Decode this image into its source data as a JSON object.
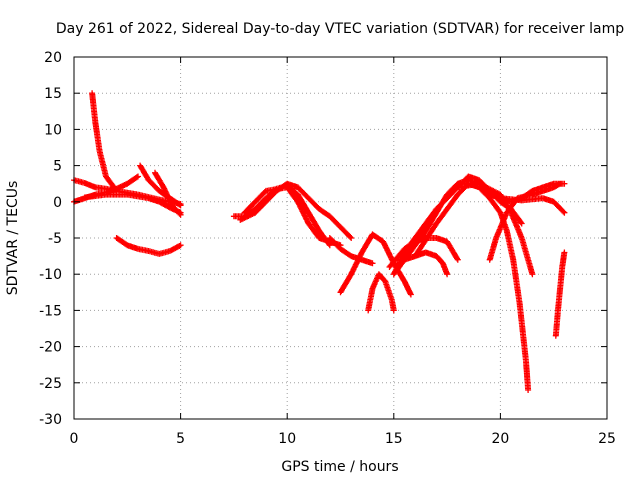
{
  "chart_data": {
    "type": "scatter",
    "title": "Day 261 of 2022, Sidereal Day-to-day VTEC variation (SDTVAR) for receiver lamp",
    "xlabel": "GPS time / hours",
    "ylabel": "SDTVAR / TECUs",
    "xlim": [
      0,
      25
    ],
    "ylim": [
      -30,
      20
    ],
    "xticks": [
      0,
      5,
      10,
      15,
      20,
      25
    ],
    "yticks": [
      20,
      15,
      10,
      5,
      0,
      -5,
      -10,
      -15,
      -20,
      -25,
      -30
    ],
    "grid": true,
    "marker": "plus",
    "color": "#ff0000",
    "series": [
      {
        "name": "tracks",
        "tracks": [
          [
            [
              0.85,
              15
            ],
            [
              1.0,
              11
            ],
            [
              1.2,
              7
            ],
            [
              1.5,
              3.5
            ],
            [
              2.0,
              1.5
            ],
            [
              2.5,
              1.2
            ],
            [
              3.0,
              1.0
            ]
          ],
          [
            [
              0.0,
              3.0
            ],
            [
              0.5,
              2.6
            ],
            [
              1.0,
              2.0
            ],
            [
              1.5,
              1.8
            ],
            [
              2.0,
              1.5
            ],
            [
              3.0,
              1.0
            ],
            [
              4.0,
              0.3
            ],
            [
              4.5,
              0.0
            ],
            [
              5.0,
              -0.3
            ]
          ],
          [
            [
              0.0,
              0.0
            ],
            [
              0.5,
              0.5
            ],
            [
              1.0,
              1.0
            ],
            [
              1.5,
              1.3
            ],
            [
              2.0,
              1.8
            ],
            [
              2.5,
              2.5
            ],
            [
              3.0,
              3.5
            ]
          ],
          [
            [
              0.5,
              0.6
            ],
            [
              1.5,
              1.0
            ],
            [
              2.5,
              1.0
            ],
            [
              3.5,
              0.5
            ],
            [
              4.0,
              0.0
            ],
            [
              4.5,
              -0.8
            ],
            [
              5.0,
              -1.5
            ]
          ],
          [
            [
              3.1,
              5.0
            ],
            [
              3.5,
              3.0
            ],
            [
              4.0,
              1.5
            ],
            [
              4.5,
              0.5
            ],
            [
              5.0,
              -0.5
            ]
          ],
          [
            [
              3.8,
              4.0
            ],
            [
              4.2,
              2.0
            ],
            [
              4.6,
              -0.5
            ],
            [
              5.0,
              -1.8
            ]
          ],
          [
            [
              2.0,
              -5.0
            ],
            [
              2.5,
              -6.0
            ],
            [
              3.0,
              -6.5
            ],
            [
              3.5,
              -6.8
            ],
            [
              4.0,
              -7.2
            ],
            [
              4.5,
              -6.8
            ],
            [
              5.0,
              -6.0
            ]
          ],
          [
            [
              7.5,
              -2.0
            ],
            [
              8.0,
              -2.0
            ],
            [
              8.5,
              -1.0
            ],
            [
              9.0,
              0.5
            ],
            [
              9.5,
              1.8
            ],
            [
              10.0,
              2.2
            ],
            [
              10.5,
              1.0
            ],
            [
              11.0,
              -1.5
            ],
            [
              11.5,
              -4.0
            ],
            [
              12.0,
              -6.0
            ]
          ],
          [
            [
              7.8,
              -2.5
            ],
            [
              8.5,
              -1.5
            ],
            [
              9.0,
              0.0
            ],
            [
              9.5,
              1.5
            ],
            [
              10.0,
              2.5
            ],
            [
              10.5,
              2.0
            ],
            [
              11.0,
              0.5
            ],
            [
              11.5,
              -1.0
            ],
            [
              12.0,
              -2.0
            ],
            [
              12.5,
              -3.5
            ],
            [
              13.0,
              -5.0
            ]
          ],
          [
            [
              8.0,
              -1.5
            ],
            [
              9.0,
              1.5
            ],
            [
              10.0,
              2.0
            ],
            [
              10.5,
              0.0
            ],
            [
              11.0,
              -3.0
            ],
            [
              11.5,
              -5.0
            ],
            [
              12.0,
              -5.5
            ],
            [
              12.5,
              -6.0
            ]
          ],
          [
            [
              12.5,
              -12.5
            ],
            [
              13.0,
              -10.0
            ],
            [
              13.5,
              -7.0
            ],
            [
              14.0,
              -4.5
            ],
            [
              14.5,
              -5.5
            ],
            [
              15.0,
              -8.5
            ],
            [
              15.3,
              -10.0
            ],
            [
              15.5,
              -11.0
            ],
            [
              15.8,
              -12.8
            ]
          ],
          [
            [
              13.8,
              -15.0
            ],
            [
              14.0,
              -12.0
            ],
            [
              14.3,
              -10.0
            ],
            [
              14.6,
              -11.0
            ],
            [
              14.9,
              -13.5
            ],
            [
              15.0,
              -15.0
            ]
          ],
          [
            [
              15.0,
              -10.0
            ],
            [
              15.5,
              -8.0
            ],
            [
              16.0,
              -7.5
            ],
            [
              16.5,
              -7.0
            ],
            [
              17.0,
              -7.5
            ],
            [
              17.3,
              -8.5
            ],
            [
              17.5,
              -10.0
            ]
          ],
          [
            [
              14.8,
              -9.0
            ],
            [
              15.5,
              -6.5
            ],
            [
              16.0,
              -5.5
            ],
            [
              16.5,
              -5.0
            ],
            [
              17.0,
              -5.0
            ],
            [
              17.5,
              -5.5
            ],
            [
              17.8,
              -7.0
            ],
            [
              18.0,
              -8.0
            ]
          ],
          [
            [
              15.0,
              -10.0
            ],
            [
              15.5,
              -7.0
            ],
            [
              16.0,
              -5.0
            ],
            [
              16.5,
              -3.0
            ],
            [
              17.0,
              -1.0
            ],
            [
              17.5,
              0.5
            ],
            [
              18.0,
              2.0
            ],
            [
              18.5,
              3.5
            ],
            [
              19.0,
              3.0
            ],
            [
              19.5,
              1.5
            ],
            [
              20.0,
              0.0
            ],
            [
              20.5,
              -1.0
            ],
            [
              21.0,
              -3.0
            ]
          ],
          [
            [
              15.5,
              -8.0
            ],
            [
              16.0,
              -6.0
            ],
            [
              16.5,
              -4.0
            ],
            [
              17.0,
              -1.5
            ],
            [
              17.5,
              1.0
            ],
            [
              18.0,
              2.5
            ],
            [
              18.5,
              3.0
            ],
            [
              19.0,
              2.5
            ],
            [
              19.5,
              1.5
            ],
            [
              20.0,
              0.5
            ],
            [
              20.5,
              0.0
            ],
            [
              21.0,
              0.5
            ],
            [
              21.5,
              1.5
            ],
            [
              22.0,
              2.0
            ],
            [
              22.5,
              2.5
            ],
            [
              23.0,
              2.5
            ]
          ],
          [
            [
              16.0,
              -7.5
            ],
            [
              17.0,
              -3.0
            ],
            [
              17.5,
              -1.0
            ],
            [
              18.0,
              1.0
            ],
            [
              18.5,
              2.5
            ],
            [
              19.0,
              2.0
            ],
            [
              19.5,
              0.5
            ],
            [
              20.0,
              -1.5
            ],
            [
              20.3,
              -4.0
            ],
            [
              20.6,
              -8.0
            ],
            [
              20.9,
              -14.0
            ],
            [
              21.2,
              -22.0
            ],
            [
              21.3,
              -26.0
            ]
          ],
          [
            [
              18.0,
              2.0
            ],
            [
              19.0,
              2.5
            ],
            [
              20.0,
              1.0
            ],
            [
              20.5,
              -1.5
            ],
            [
              21.0,
              -5.0
            ],
            [
              21.5,
              -10.0
            ]
          ],
          [
            [
              19.5,
              -8.0
            ],
            [
              19.8,
              -5.0
            ],
            [
              20.3,
              -1.5
            ],
            [
              20.8,
              0.5
            ],
            [
              21.5,
              1.0
            ],
            [
              22.0,
              1.5
            ],
            [
              22.5,
              2.0
            ],
            [
              22.8,
              2.5
            ]
          ],
          [
            [
              19.0,
              2.0
            ],
            [
              19.5,
              1.0
            ],
            [
              20.0,
              0.5
            ],
            [
              21.0,
              0.2
            ],
            [
              22.0,
              0.5
            ],
            [
              22.5,
              0.0
            ],
            [
              23.0,
              -1.5
            ]
          ],
          [
            [
              22.6,
              -18.5
            ],
            [
              22.7,
              -15.0
            ],
            [
              22.8,
              -12.0
            ],
            [
              22.9,
              -9.0
            ],
            [
              23.0,
              -7.0
            ]
          ],
          [
            [
              12.0,
              -5.0
            ],
            [
              12.5,
              -6.5
            ],
            [
              13.0,
              -7.5
            ],
            [
              13.5,
              -8.0
            ],
            [
              14.0,
              -8.5
            ]
          ]
        ]
      }
    ]
  }
}
